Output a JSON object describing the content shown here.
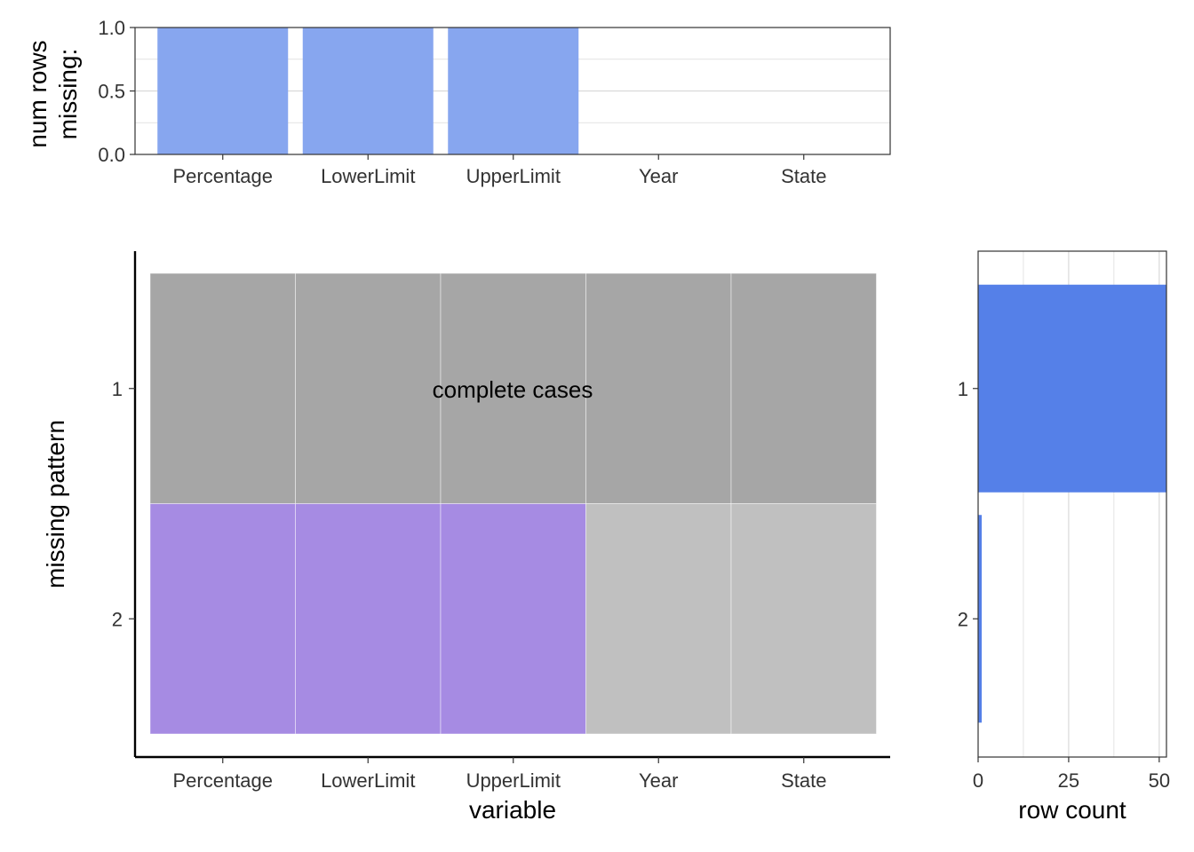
{
  "chart_data": [
    {
      "type": "bar",
      "panel": "top-missing-proportion",
      "categories": [
        "Percentage",
        "LowerLimit",
        "UpperLimit",
        "Year",
        "State"
      ],
      "values": [
        1.0,
        1.0,
        1.0,
        0.0,
        0.0
      ],
      "ylabel_lines": [
        "num rows",
        "missing:"
      ],
      "ylim": [
        0,
        1
      ],
      "yticks": [
        "0.0",
        "0.5",
        "1.0"
      ],
      "grid": true,
      "bar_color": "#87A6EF"
    },
    {
      "type": "heatmap",
      "panel": "missing-pattern-tiles",
      "variables": [
        "Percentage",
        "LowerLimit",
        "UpperLimit",
        "Year",
        "State"
      ],
      "patterns": [
        "1",
        "2"
      ],
      "cells": [
        [
          "complete",
          "complete",
          "complete",
          "complete",
          "complete"
        ],
        [
          "missing",
          "missing",
          "missing",
          "present",
          "present"
        ]
      ],
      "annotation": "complete cases",
      "xlabel": "variable",
      "ylabel": "missing pattern",
      "colors": {
        "complete": "#A6A6A6",
        "missing": "#A68BE3",
        "present": "#C0C0C0"
      }
    },
    {
      "type": "bar",
      "orientation": "horizontal",
      "panel": "right-row-count",
      "categories": [
        "1",
        "2"
      ],
      "values": [
        52,
        1
      ],
      "xlim": [
        0,
        52
      ],
      "xticks": [
        "0",
        "25",
        "50"
      ],
      "xlabel": "row count",
      "grid": true,
      "bar_color": "#5580E8"
    }
  ]
}
